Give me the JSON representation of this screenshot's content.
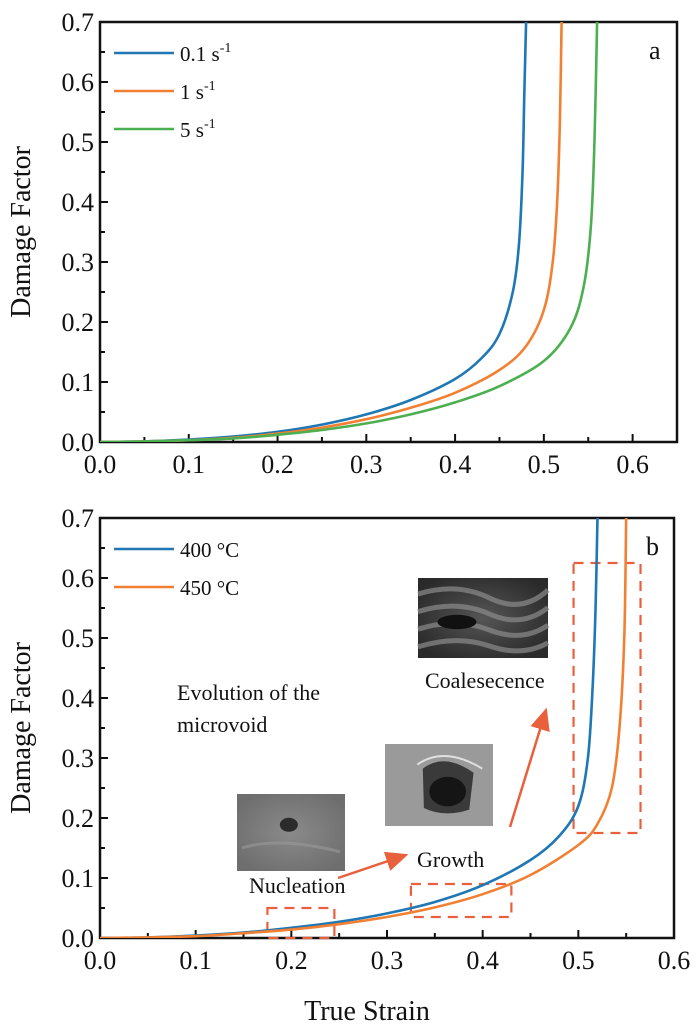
{
  "chart_data": [
    {
      "type": "line",
      "panel_label": "a",
      "title": "",
      "xlabel": "",
      "ylabel": "Damage Factor",
      "xlim": [
        0.0,
        0.65
      ],
      "ylim": [
        0.0,
        0.7
      ],
      "xticks": [
        "0.0",
        "0.1",
        "0.2",
        "0.3",
        "0.4",
        "0.5",
        "0.6"
      ],
      "yticks": [
        "0.0",
        "0.1",
        "0.2",
        "0.3",
        "0.4",
        "0.5",
        "0.6",
        "0.7"
      ],
      "legend_position": "top-left",
      "series": [
        {
          "name": "0.1 s",
          "sup": "-1",
          "color": "#1f77b4",
          "x": [
            0,
            0.05,
            0.1,
            0.15,
            0.2,
            0.25,
            0.3,
            0.35,
            0.4,
            0.43,
            0.45,
            0.465,
            0.472,
            0.476,
            0.478,
            0.48
          ],
          "y": [
            0,
            0.001,
            0.004,
            0.009,
            0.017,
            0.029,
            0.046,
            0.07,
            0.105,
            0.14,
            0.18,
            0.25,
            0.33,
            0.45,
            0.58,
            0.7
          ]
        },
        {
          "name": "1 s",
          "sup": "-1",
          "color": "#f28032",
          "x": [
            0,
            0.05,
            0.1,
            0.15,
            0.2,
            0.25,
            0.3,
            0.35,
            0.4,
            0.45,
            0.48,
            0.5,
            0.51,
            0.515,
            0.518,
            0.52
          ],
          "y": [
            0,
            0.001,
            0.003,
            0.007,
            0.014,
            0.024,
            0.038,
            0.057,
            0.082,
            0.12,
            0.16,
            0.22,
            0.3,
            0.4,
            0.53,
            0.7
          ]
        },
        {
          "name": "5 s",
          "sup": "-1",
          "color": "#4caf50",
          "x": [
            0,
            0.05,
            0.1,
            0.15,
            0.2,
            0.25,
            0.3,
            0.35,
            0.4,
            0.45,
            0.5,
            0.53,
            0.545,
            0.553,
            0.557,
            0.56
          ],
          "y": [
            0,
            0.001,
            0.003,
            0.006,
            0.012,
            0.02,
            0.031,
            0.046,
            0.066,
            0.093,
            0.135,
            0.19,
            0.26,
            0.36,
            0.5,
            0.7
          ]
        }
      ]
    },
    {
      "type": "line",
      "panel_label": "b",
      "title": "",
      "xlabel": "True Strain",
      "ylabel": "Damage Factor",
      "xlim": [
        0.0,
        0.6
      ],
      "ylim": [
        0.0,
        0.7
      ],
      "xticks": [
        "0.0",
        "0.1",
        "0.2",
        "0.3",
        "0.4",
        "0.5",
        "0.6"
      ],
      "yticks": [
        "0.0",
        "0.1",
        "0.2",
        "0.3",
        "0.4",
        "0.5",
        "0.6",
        "0.7"
      ],
      "legend_position": "top-left",
      "series": [
        {
          "name": "400 °C",
          "color": "#1f77b4",
          "x": [
            0,
            0.05,
            0.1,
            0.15,
            0.2,
            0.25,
            0.3,
            0.35,
            0.4,
            0.45,
            0.48,
            0.5,
            0.51,
            0.515,
            0.518,
            0.52
          ],
          "y": [
            0,
            0.001,
            0.004,
            0.009,
            0.017,
            0.027,
            0.041,
            0.06,
            0.088,
            0.13,
            0.17,
            0.22,
            0.3,
            0.42,
            0.55,
            0.7
          ]
        },
        {
          "name": "450 °C",
          "color": "#f28032",
          "x": [
            0,
            0.05,
            0.1,
            0.15,
            0.2,
            0.25,
            0.3,
            0.35,
            0.4,
            0.45,
            0.5,
            0.52,
            0.535,
            0.543,
            0.548,
            0.55
          ],
          "y": [
            0,
            0.001,
            0.003,
            0.008,
            0.014,
            0.023,
            0.035,
            0.051,
            0.073,
            0.105,
            0.155,
            0.19,
            0.25,
            0.35,
            0.5,
            0.7
          ]
        }
      ],
      "annotations": {
        "title_text_line1": "Evolution of the",
        "title_text_line2": "microvoid",
        "stages": [
          "Nucleation",
          "Growth",
          "Coalesecence"
        ],
        "dashed_boxes": [
          {
            "stage": "Nucleation",
            "x": [
              0.175,
              0.245
            ],
            "y": [
              0.0,
              0.05
            ]
          },
          {
            "stage": "Growth",
            "x": [
              0.325,
              0.43
            ],
            "y": [
              0.035,
              0.09
            ]
          },
          {
            "stage": "Coalesecence",
            "x": [
              0.495,
              0.565
            ],
            "y": [
              0.175,
              0.625
            ]
          }
        ],
        "box_color": "#e8603c"
      }
    }
  ]
}
